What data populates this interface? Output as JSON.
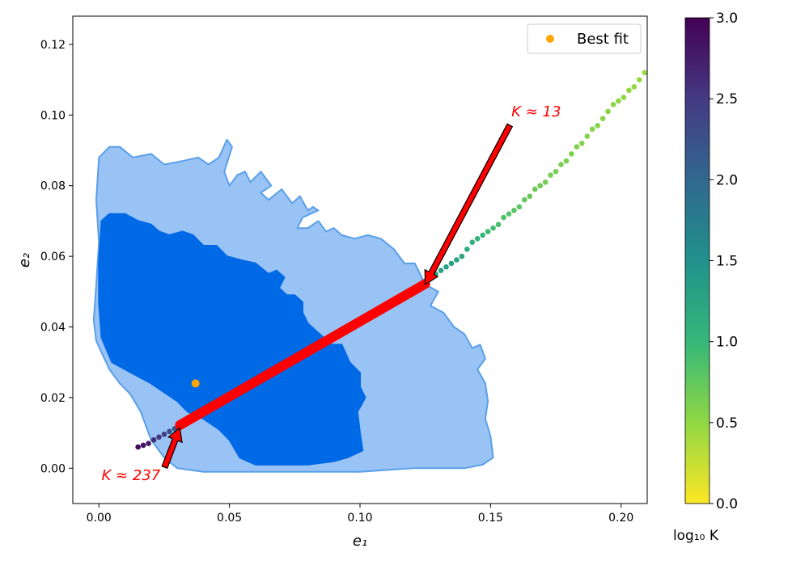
{
  "chart_data": {
    "type": "scatter",
    "xlabel": "e₁",
    "ylabel": "e₂",
    "xlim": [
      -0.01,
      0.21
    ],
    "ylim": [
      -0.01,
      0.128
    ],
    "xticks": [
      0.0,
      0.05,
      0.1,
      0.15,
      0.2
    ],
    "xtick_labels": [
      "0.00",
      "0.05",
      "0.10",
      "0.15",
      "0.20"
    ],
    "yticks": [
      0.0,
      0.02,
      0.04,
      0.06,
      0.08,
      0.1,
      0.12
    ],
    "ytick_labels": [
      "0.00",
      "0.02",
      "0.04",
      "0.06",
      "0.08",
      "0.10",
      "0.12"
    ],
    "grid": false,
    "contours": [
      {
        "level": "outer",
        "color": "#99c3f5",
        "edge_color": "#5a9fe8",
        "points": [
          [
            0.0,
            0.088
          ],
          [
            0.004,
            0.091
          ],
          [
            0.008,
            0.091
          ],
          [
            0.013,
            0.088
          ],
          [
            0.02,
            0.089
          ],
          [
            0.025,
            0.086
          ],
          [
            0.032,
            0.087
          ],
          [
            0.038,
            0.088
          ],
          [
            0.042,
            0.086
          ],
          [
            0.046,
            0.088
          ],
          [
            0.049,
            0.093
          ],
          [
            0.051,
            0.091
          ],
          [
            0.048,
            0.084
          ],
          [
            0.05,
            0.08
          ],
          [
            0.053,
            0.083
          ],
          [
            0.056,
            0.084
          ],
          [
            0.058,
            0.081
          ],
          [
            0.062,
            0.084
          ],
          [
            0.066,
            0.08
          ],
          [
            0.062,
            0.078
          ],
          [
            0.065,
            0.076
          ],
          [
            0.07,
            0.079
          ],
          [
            0.074,
            0.075
          ],
          [
            0.077,
            0.077
          ],
          [
            0.08,
            0.073
          ],
          [
            0.082,
            0.074
          ],
          [
            0.084,
            0.073
          ],
          [
            0.078,
            0.071
          ],
          [
            0.076,
            0.068
          ],
          [
            0.08,
            0.068
          ],
          [
            0.084,
            0.07
          ],
          [
            0.087,
            0.067
          ],
          [
            0.09,
            0.068
          ],
          [
            0.093,
            0.066
          ],
          [
            0.098,
            0.065
          ],
          [
            0.103,
            0.066
          ],
          [
            0.108,
            0.065
          ],
          [
            0.113,
            0.062
          ],
          [
            0.117,
            0.058
          ],
          [
            0.121,
            0.058
          ],
          [
            0.125,
            0.052
          ],
          [
            0.13,
            0.05
          ],
          [
            0.127,
            0.046
          ],
          [
            0.132,
            0.044
          ],
          [
            0.136,
            0.04
          ],
          [
            0.14,
            0.038
          ],
          [
            0.143,
            0.034
          ],
          [
            0.146,
            0.035
          ],
          [
            0.148,
            0.031
          ],
          [
            0.145,
            0.028
          ],
          [
            0.148,
            0.024
          ],
          [
            0.149,
            0.019
          ],
          [
            0.148,
            0.014
          ],
          [
            0.15,
            0.009
          ],
          [
            0.151,
            0.003
          ],
          [
            0.147,
            0.001
          ],
          [
            0.14,
            0.0
          ],
          [
            0.12,
            0.0
          ],
          [
            0.1,
            -0.001
          ],
          [
            0.08,
            -0.001
          ],
          [
            0.06,
            -0.001
          ],
          [
            0.04,
            -0.001
          ],
          [
            0.03,
            0.0
          ],
          [
            0.025,
            0.003
          ],
          [
            0.02,
            0.008
          ],
          [
            0.016,
            0.016
          ],
          [
            0.012,
            0.021
          ],
          [
            0.008,
            0.024
          ],
          [
            0.004,
            0.028
          ],
          [
            -0.001,
            0.036
          ],
          [
            -0.002,
            0.042
          ],
          [
            -0.001,
            0.052
          ],
          [
            0.0,
            0.064
          ],
          [
            -0.001,
            0.076
          ],
          [
            0.0,
            0.088
          ]
        ]
      },
      {
        "level": "inner",
        "color": "#0069e6",
        "edge_color": "#0069e6",
        "points": [
          [
            0.001,
            0.07
          ],
          [
            0.004,
            0.072
          ],
          [
            0.01,
            0.072
          ],
          [
            0.015,
            0.07
          ],
          [
            0.02,
            0.069
          ],
          [
            0.023,
            0.067
          ],
          [
            0.027,
            0.066
          ],
          [
            0.032,
            0.067
          ],
          [
            0.036,
            0.066
          ],
          [
            0.04,
            0.063
          ],
          [
            0.045,
            0.063
          ],
          [
            0.049,
            0.06
          ],
          [
            0.054,
            0.059
          ],
          [
            0.06,
            0.058
          ],
          [
            0.065,
            0.055
          ],
          [
            0.068,
            0.056
          ],
          [
            0.071,
            0.054
          ],
          [
            0.069,
            0.051
          ],
          [
            0.072,
            0.049
          ],
          [
            0.075,
            0.049
          ],
          [
            0.078,
            0.047
          ],
          [
            0.078,
            0.044
          ],
          [
            0.08,
            0.041
          ],
          [
            0.083,
            0.039
          ],
          [
            0.086,
            0.037
          ],
          [
            0.089,
            0.035
          ],
          [
            0.093,
            0.035
          ],
          [
            0.096,
            0.03
          ],
          [
            0.1,
            0.027
          ],
          [
            0.1,
            0.023
          ],
          [
            0.102,
            0.02
          ],
          [
            0.099,
            0.016
          ],
          [
            0.1,
            0.01
          ],
          [
            0.101,
            0.005
          ],
          [
            0.095,
            0.003
          ],
          [
            0.09,
            0.002
          ],
          [
            0.08,
            0.001
          ],
          [
            0.07,
            0.001
          ],
          [
            0.06,
            0.001
          ],
          [
            0.054,
            0.003
          ],
          [
            0.05,
            0.008
          ],
          [
            0.046,
            0.011
          ],
          [
            0.04,
            0.014
          ],
          [
            0.034,
            0.016
          ],
          [
            0.03,
            0.019
          ],
          [
            0.024,
            0.022
          ],
          [
            0.02,
            0.024
          ],
          [
            0.015,
            0.026
          ],
          [
            0.01,
            0.028
          ],
          [
            0.005,
            0.03
          ],
          [
            0.001,
            0.037
          ],
          [
            0.0,
            0.047
          ],
          [
            0.0,
            0.058
          ],
          [
            0.001,
            0.07
          ]
        ]
      }
    ],
    "series": [
      {
        "name": "Best fit",
        "color": "#ffa500",
        "points": [
          [
            0.037,
            0.024
          ]
        ]
      },
      {
        "color_by": "log10 K",
        "points": [
          [
            0.015,
            0.006,
            2.95
          ],
          [
            0.017,
            0.0065,
            2.85
          ],
          [
            0.019,
            0.007,
            2.75
          ],
          [
            0.021,
            0.008,
            2.6
          ],
          [
            0.023,
            0.0088,
            2.5
          ],
          [
            0.025,
            0.0096,
            2.4
          ],
          [
            0.027,
            0.0104,
            2.3
          ],
          [
            0.029,
            0.0112,
            2.2
          ],
          [
            0.125,
            0.053,
            1.1
          ],
          [
            0.127,
            0.054,
            1.15
          ],
          [
            0.129,
            0.055,
            1.2
          ],
          [
            0.131,
            0.056,
            1.25
          ],
          [
            0.133,
            0.057,
            1.3
          ],
          [
            0.135,
            0.058,
            1.3
          ],
          [
            0.137,
            0.059,
            1.28
          ],
          [
            0.139,
            0.06,
            1.25
          ],
          [
            0.141,
            0.062,
            1.15
          ],
          [
            0.143,
            0.064,
            1.1
          ],
          [
            0.145,
            0.065,
            1.05
          ],
          [
            0.147,
            0.066,
            1.0
          ],
          [
            0.149,
            0.067,
            0.95
          ],
          [
            0.151,
            0.068,
            0.92
          ],
          [
            0.153,
            0.069,
            0.9
          ],
          [
            0.155,
            0.071,
            0.85
          ],
          [
            0.157,
            0.072,
            0.82
          ],
          [
            0.159,
            0.073,
            0.8
          ],
          [
            0.161,
            0.074,
            0.78
          ],
          [
            0.163,
            0.076,
            0.75
          ],
          [
            0.165,
            0.077,
            0.72
          ],
          [
            0.167,
            0.079,
            0.7
          ],
          [
            0.169,
            0.08,
            0.68
          ],
          [
            0.171,
            0.081,
            0.66
          ],
          [
            0.173,
            0.083,
            0.65
          ],
          [
            0.175,
            0.084,
            0.64
          ],
          [
            0.177,
            0.086,
            0.62
          ],
          [
            0.179,
            0.087,
            0.61
          ],
          [
            0.181,
            0.089,
            0.6
          ],
          [
            0.183,
            0.091,
            0.59
          ],
          [
            0.185,
            0.092,
            0.58
          ],
          [
            0.187,
            0.094,
            0.57
          ],
          [
            0.189,
            0.096,
            0.56
          ],
          [
            0.191,
            0.097,
            0.55
          ],
          [
            0.193,
            0.099,
            0.54
          ],
          [
            0.195,
            0.101,
            0.53
          ],
          [
            0.197,
            0.103,
            0.52
          ],
          [
            0.199,
            0.104,
            0.51
          ],
          [
            0.201,
            0.105,
            0.5
          ],
          [
            0.203,
            0.107,
            0.49
          ],
          [
            0.205,
            0.108,
            0.48
          ],
          [
            0.207,
            0.11,
            0.47
          ],
          [
            0.209,
            0.112,
            0.46
          ]
        ]
      },
      {
        "color": "#ff0000",
        "segment": [
          [
            0.031,
            0.0122
          ],
          [
            0.125,
            0.0522
          ]
        ]
      }
    ],
    "colorbar": {
      "label": "log₁₀ K",
      "range": [
        0.0,
        3.0
      ],
      "ticks": [
        0.0,
        0.5,
        1.0,
        1.5,
        2.0,
        2.5,
        3.0
      ],
      "tick_labels": [
        "0.0",
        "0.5",
        "1.0",
        "1.5",
        "2.0",
        "2.5",
        "3.0"
      ],
      "colormap": "viridis_r",
      "colormap_stops": [
        "#fde725",
        "#90d743",
        "#35b779",
        "#21918c",
        "#31688e",
        "#443983",
        "#440154"
      ]
    },
    "annotations": [
      {
        "text": "K ≈ 13",
        "xy": [
          0.125,
          0.052
        ],
        "xytext": [
          0.158,
          0.101
        ]
      },
      {
        "text": "K ≈ 237",
        "xy": [
          0.031,
          0.0115
        ],
        "xytext": [
          0.001,
          -0.002
        ]
      }
    ],
    "legend": {
      "position": "top-right",
      "entries": [
        "Best fit"
      ]
    }
  }
}
